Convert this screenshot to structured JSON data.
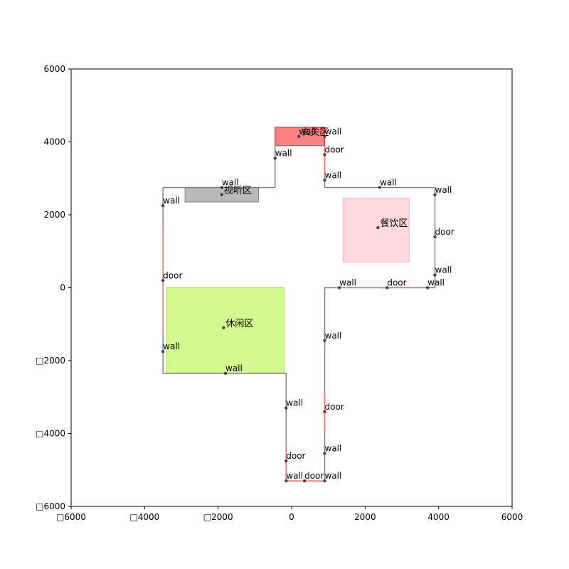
{
  "chart_data": {
    "type": "floorplan",
    "xlim": [
      -6000,
      6000
    ],
    "ylim": [
      -6000,
      6000
    ],
    "x_ticks": [
      {
        "value": -6000,
        "label": "□6000"
      },
      {
        "value": -4000,
        "label": "□4000"
      },
      {
        "value": -2000,
        "label": "□2000"
      },
      {
        "value": 0,
        "label": "0"
      },
      {
        "value": 2000,
        "label": "2000"
      },
      {
        "value": 4000,
        "label": "4000"
      },
      {
        "value": 6000,
        "label": "6000"
      }
    ],
    "y_ticks": [
      {
        "value": 6000,
        "label": "6000"
      },
      {
        "value": 4000,
        "label": "4000"
      },
      {
        "value": 2000,
        "label": "2000"
      },
      {
        "value": 0,
        "label": "0"
      },
      {
        "value": -2000,
        "label": "□2000"
      },
      {
        "value": -4000,
        "label": "□4000"
      },
      {
        "value": -6000,
        "label": "□6000"
      }
    ],
    "outline": [
      [
        -3500,
        2750
      ],
      [
        -450,
        2750
      ],
      [
        -450,
        3900
      ],
      [
        900,
        3900
      ],
      [
        900,
        2750
      ],
      [
        3900,
        2750
      ],
      [
        3900,
        0
      ],
      [
        900,
        0
      ],
      [
        900,
        -5300
      ],
      [
        -150,
        -5300
      ],
      [
        -150,
        -2350
      ],
      [
        -3500,
        -2350
      ],
      [
        -3500,
        2750
      ]
    ],
    "doors": [
      {
        "from": [
          -3500,
          1700
        ],
        "to": [
          -3500,
          -1300
        ]
      },
      {
        "from": [
          900,
          3900
        ],
        "to": [
          900,
          3000
        ]
      },
      {
        "from": [
          3900,
          2650
        ],
        "to": [
          3900,
          300
        ]
      },
      {
        "from": [
          1200,
          0
        ],
        "to": [
          3600,
          0
        ]
      },
      {
        "from": [
          900,
          -2900
        ],
        "to": [
          900,
          -3900
        ]
      },
      {
        "from": [
          -150,
          -4300
        ],
        "to": [
          -150,
          -5250
        ]
      },
      {
        "from": [
          -50,
          -5300
        ],
        "to": [
          850,
          -5300
        ]
      }
    ],
    "zones": [
      {
        "name": "玄关区",
        "x0": -450,
        "x1": 900,
        "y0": 3900,
        "y1": 4400,
        "fill": "#ff6b6b",
        "opacity": 0.85,
        "stroke": "#cc2222",
        "label_x": 200,
        "label_y": 4150
      },
      {
        "name": "视听区",
        "x0": -2900,
        "x1": -900,
        "y0": 2350,
        "y1": 2750,
        "fill": "#a9a9a9",
        "opacity": 0.8,
        "stroke": "#888888",
        "label_x": -1900,
        "label_y": 2550
      },
      {
        "name": "餐饮区",
        "x0": 1400,
        "x1": 3200,
        "y0": 700,
        "y1": 2450,
        "fill": "#ffd0d8",
        "opacity": 0.8,
        "stroke": "#ffb0c0",
        "label_x": 2350,
        "label_y": 1650
      },
      {
        "name": "休闲区",
        "x0": -3400,
        "x1": -200,
        "y0": -2350,
        "y1": 0,
        "fill": "#c6f56a",
        "opacity": 0.75,
        "stroke": "#a6dd40",
        "label_x": -1850,
        "label_y": -1100
      }
    ],
    "annotations": [
      {
        "text": "wall",
        "x": 200,
        "y": 4150
      },
      {
        "text": "wall",
        "x": 900,
        "y": 4150
      },
      {
        "text": "door",
        "x": 900,
        "y": 3650
      },
      {
        "text": "wall",
        "x": -450,
        "y": 3550
      },
      {
        "text": "wall",
        "x": 900,
        "y": 2950
      },
      {
        "text": "wall",
        "x": -1900,
        "y": 2750
      },
      {
        "text": "wall",
        "x": 2400,
        "y": 2750
      },
      {
        "text": "wall",
        "x": 3900,
        "y": 2550
      },
      {
        "text": "wall",
        "x": -3500,
        "y": 2250
      },
      {
        "text": "door",
        "x": 3900,
        "y": 1400
      },
      {
        "text": "door",
        "x": -3500,
        "y": 200
      },
      {
        "text": "wall",
        "x": 3900,
        "y": 350
      },
      {
        "text": "wall",
        "x": 1300,
        "y": 0
      },
      {
        "text": "door",
        "x": 2600,
        "y": 0
      },
      {
        "text": "wall",
        "x": 3700,
        "y": 0
      },
      {
        "text": "wall",
        "x": 900,
        "y": -1450
      },
      {
        "text": "wall",
        "x": -3500,
        "y": -1750
      },
      {
        "text": "wall",
        "x": -1800,
        "y": -2350
      },
      {
        "text": "wall",
        "x": -150,
        "y": -3300
      },
      {
        "text": "door",
        "x": 900,
        "y": -3400
      },
      {
        "text": "wall",
        "x": 900,
        "y": -4550
      },
      {
        "text": "door",
        "x": -150,
        "y": -4750
      },
      {
        "text": "wall",
        "x": -150,
        "y": -5300
      },
      {
        "text": "door",
        "x": 350,
        "y": -5300
      },
      {
        "text": "wall",
        "x": 900,
        "y": -5300
      }
    ]
  },
  "colors": {
    "outline": "#808080",
    "door": "#ff6b6b",
    "marker": "#444444"
  }
}
